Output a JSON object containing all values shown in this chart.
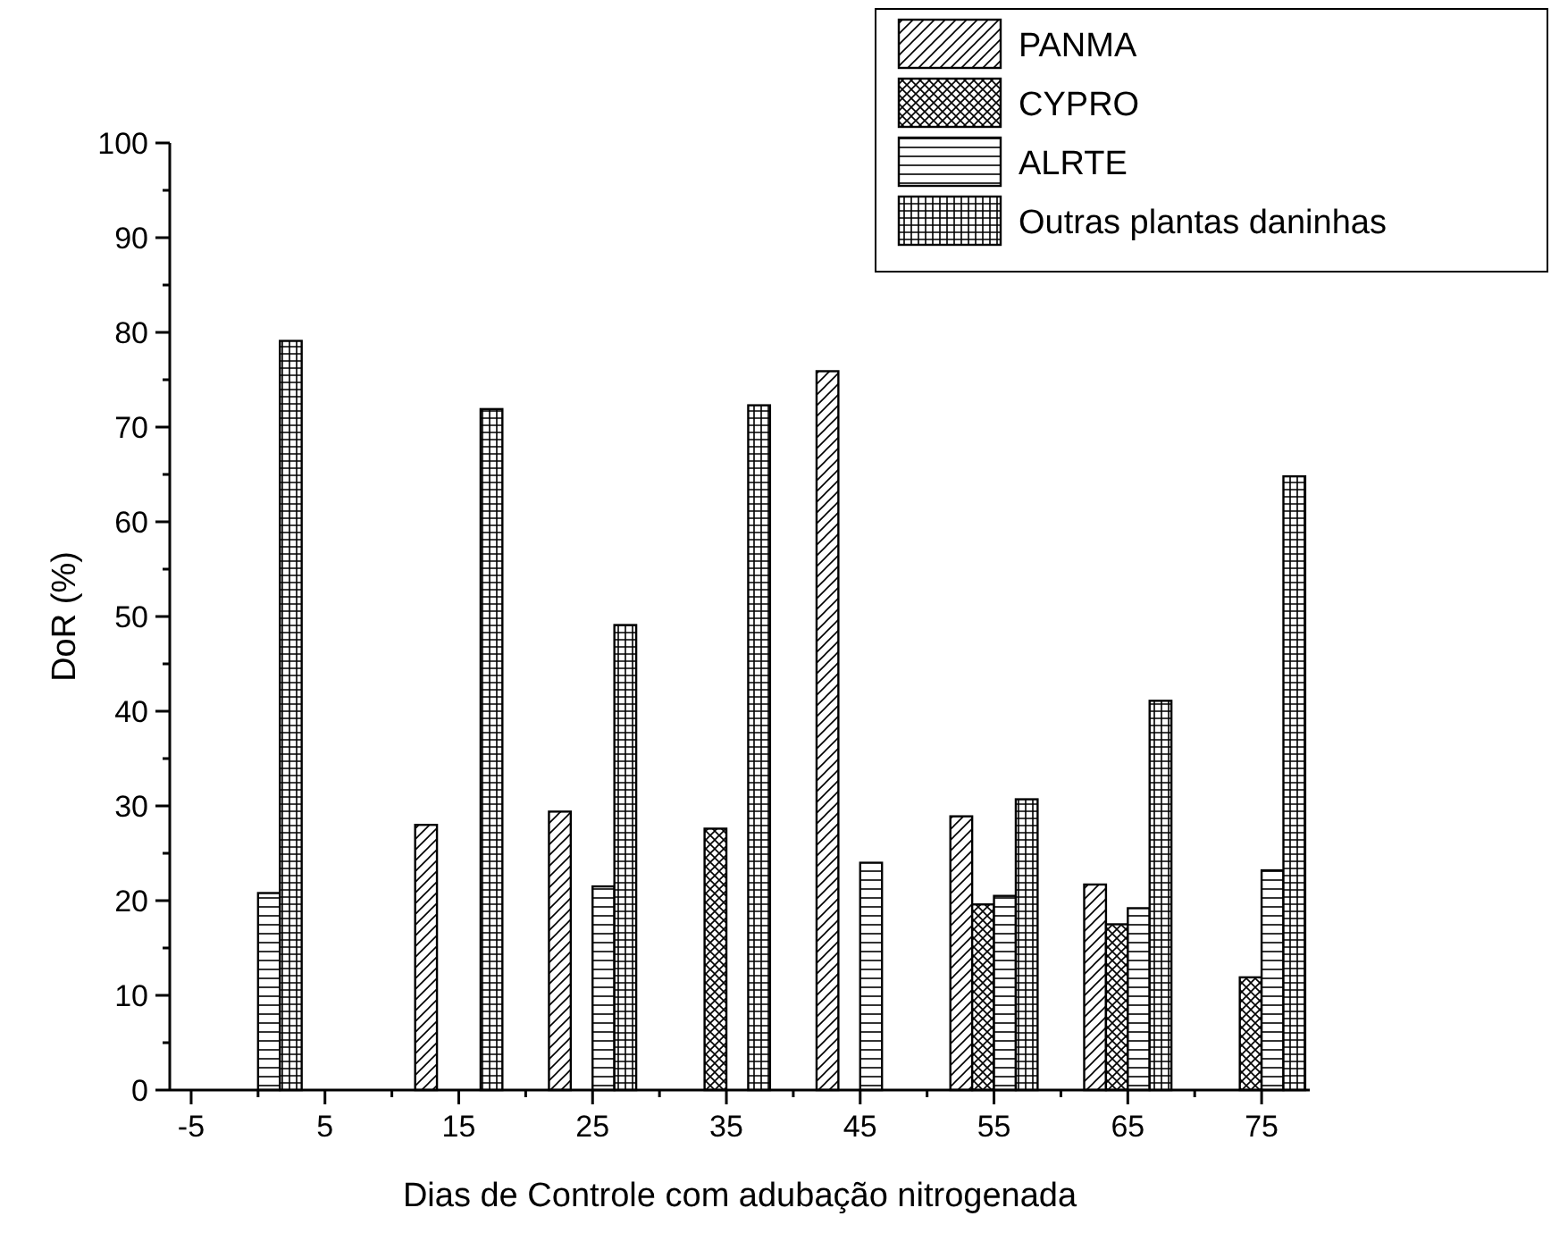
{
  "chart_data": {
    "type": "bar",
    "xlabel": "Dias de Controle com adubação nitrogenada",
    "ylabel": "DoR (%)",
    "x": [
      0,
      15,
      25,
      35,
      45,
      55,
      65,
      75
    ],
    "series": [
      {
        "name": "PANMA",
        "color": "#000000",
        "values": [
          null,
          28.0,
          29.4,
          null,
          75.9,
          28.9,
          21.7,
          null
        ]
      },
      {
        "name": "CYPRO",
        "color": "#000000",
        "values": [
          null,
          null,
          null,
          27.6,
          null,
          19.6,
          17.5,
          11.9
        ]
      },
      {
        "name": "ALRTE",
        "color": "#000000",
        "values": [
          20.8,
          null,
          21.5,
          null,
          24.0,
          20.5,
          19.2,
          23.2
        ]
      },
      {
        "name": "Outras plantas daninhas",
        "color": "#000000",
        "values": [
          79.1,
          71.9,
          49.1,
          72.3,
          null,
          30.7,
          41.1,
          64.8
        ]
      }
    ],
    "xlim": [
      -6.6,
      78.6
    ],
    "xticks": [
      -5,
      {
        "value": 0,
        "label": null
      },
      5,
      {
        "value": 10,
        "label": null
      },
      15,
      {
        "value": 20,
        "label": null
      },
      25,
      {
        "value": 30,
        "label": null
      },
      35,
      {
        "value": 40,
        "label": null
      },
      45,
      {
        "value": 50,
        "label": null
      },
      55,
      {
        "value": 60,
        "label": null
      },
      65,
      {
        "value": 70,
        "label": null
      },
      75
    ],
    "ylim": [
      0,
      100
    ],
    "yticks": [
      0,
      {
        "value": 5,
        "label": null
      },
      10,
      {
        "value": 15,
        "label": null
      },
      20,
      {
        "value": 25,
        "label": null
      },
      30,
      {
        "value": 35,
        "label": null
      },
      40,
      {
        "value": 45,
        "label": null
      },
      50,
      {
        "value": 55,
        "label": null
      },
      60,
      {
        "value": 65,
        "label": null
      },
      70,
      {
        "value": 75,
        "label": null
      },
      80,
      {
        "value": 85,
        "label": null
      },
      90,
      {
        "value": 95,
        "label": null
      },
      100
    ],
    "grid": false,
    "legend": "top right"
  }
}
